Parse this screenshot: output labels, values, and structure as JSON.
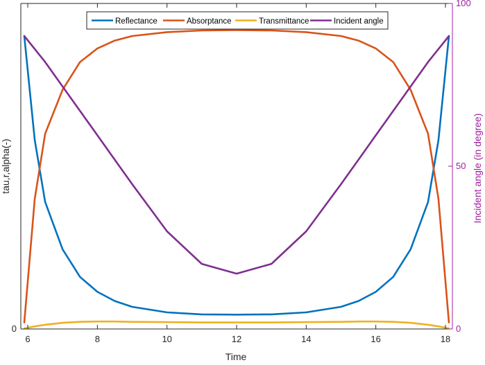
{
  "chart_data": {
    "type": "line",
    "title": "",
    "xlabel": "Time",
    "ylabel_left": "tau,r,alpha(-)",
    "ylabel_right": "Incident angle (in degree)",
    "xlim": [
      5.8,
      18.2
    ],
    "ylim_left": [
      0,
      1.0
    ],
    "ylim_right": [
      0,
      100
    ],
    "xticks": [
      6,
      8,
      10,
      12,
      14,
      16,
      18
    ],
    "yticks_left": [
      0
    ],
    "yticks_right": [
      0,
      50,
      100
    ],
    "grid": false,
    "legend_position": "top",
    "x": [
      5.9,
      6.2,
      6.5,
      7.0,
      7.5,
      8.0,
      8.5,
      9.0,
      10.0,
      11.0,
      12.0,
      13.0,
      14.0,
      15.0,
      15.5,
      16.0,
      16.5,
      17.0,
      17.5,
      17.8,
      18.1
    ],
    "series": [
      {
        "name": "Reflectance",
        "color": "#0072bd",
        "axis": "left",
        "values": [
          0.9,
          0.58,
          0.39,
          0.245,
          0.16,
          0.114,
          0.086,
          0.068,
          0.051,
          0.045,
          0.044,
          0.045,
          0.051,
          0.068,
          0.086,
          0.114,
          0.16,
          0.245,
          0.39,
          0.58,
          0.9
        ]
      },
      {
        "name": "Absorptance",
        "color": "#d95319",
        "axis": "left",
        "values": [
          0.02,
          0.4,
          0.6,
          0.735,
          0.82,
          0.862,
          0.886,
          0.9,
          0.912,
          0.917,
          0.918,
          0.917,
          0.912,
          0.9,
          0.886,
          0.862,
          0.82,
          0.735,
          0.6,
          0.4,
          0.02
        ]
      },
      {
        "name": "Transmittance",
        "color": "#edb120",
        "axis": "left",
        "values": [
          0.002,
          0.008,
          0.013,
          0.019,
          0.022,
          0.023,
          0.023,
          0.022,
          0.021,
          0.02,
          0.02,
          0.02,
          0.021,
          0.022,
          0.023,
          0.023,
          0.022,
          0.019,
          0.013,
          0.008,
          0.002
        ]
      },
      {
        "name": "Incident angle",
        "color": "#7e2f8e",
        "axis": "right",
        "values": [
          90,
          86,
          82,
          74.5,
          67,
          59.5,
          52,
          44.5,
          30,
          20,
          17,
          20,
          30,
          44.5,
          52,
          59.5,
          67,
          74.5,
          82,
          86,
          90
        ]
      }
    ]
  }
}
